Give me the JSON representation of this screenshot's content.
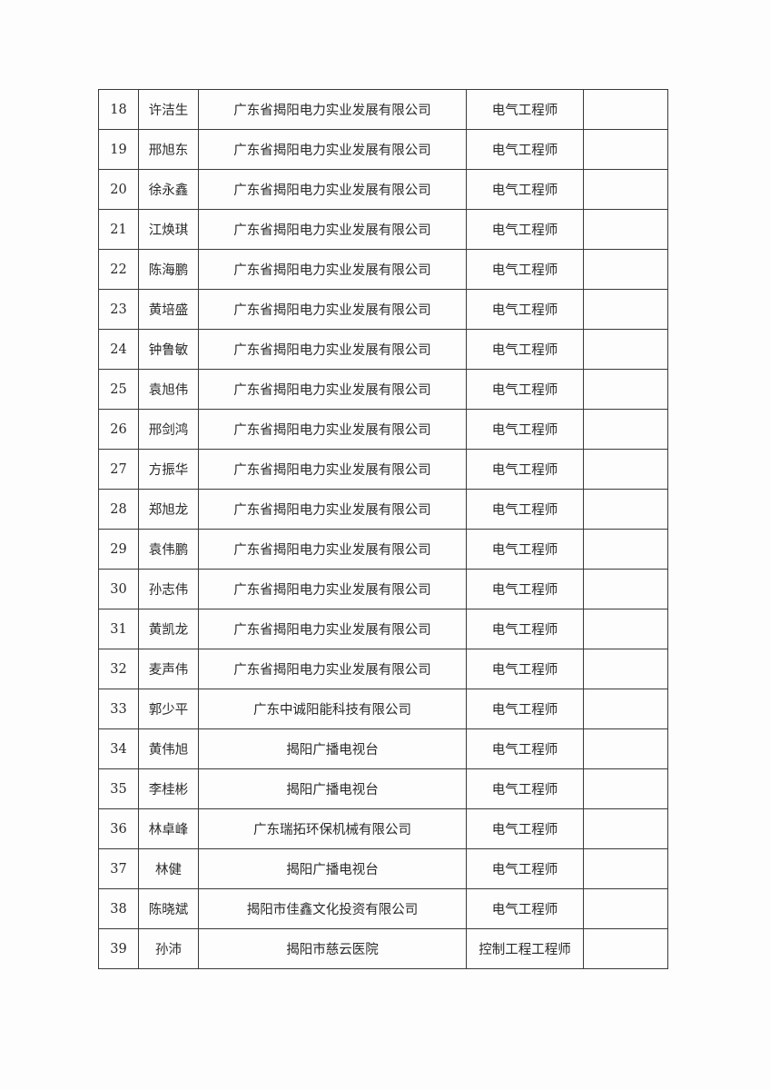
{
  "rows": [
    {
      "no": "18",
      "name": "许洁生",
      "org": "广东省揭阳电力实业发展有限公司",
      "title": "电气工程师",
      "note": ""
    },
    {
      "no": "19",
      "name": "邢旭东",
      "org": "广东省揭阳电力实业发展有限公司",
      "title": "电气工程师",
      "note": ""
    },
    {
      "no": "20",
      "name": "徐永鑫",
      "org": "广东省揭阳电力实业发展有限公司",
      "title": "电气工程师",
      "note": ""
    },
    {
      "no": "21",
      "name": "江焕琪",
      "org": "广东省揭阳电力实业发展有限公司",
      "title": "电气工程师",
      "note": ""
    },
    {
      "no": "22",
      "name": "陈海鹏",
      "org": "广东省揭阳电力实业发展有限公司",
      "title": "电气工程师",
      "note": ""
    },
    {
      "no": "23",
      "name": "黄培盛",
      "org": "广东省揭阳电力实业发展有限公司",
      "title": "电气工程师",
      "note": ""
    },
    {
      "no": "24",
      "name": "钟鲁敏",
      "org": "广东省揭阳电力实业发展有限公司",
      "title": "电气工程师",
      "note": ""
    },
    {
      "no": "25",
      "name": "袁旭伟",
      "org": "广东省揭阳电力实业发展有限公司",
      "title": "电气工程师",
      "note": ""
    },
    {
      "no": "26",
      "name": "邢剑鸿",
      "org": "广东省揭阳电力实业发展有限公司",
      "title": "电气工程师",
      "note": ""
    },
    {
      "no": "27",
      "name": "方振华",
      "org": "广东省揭阳电力实业发展有限公司",
      "title": "电气工程师",
      "note": ""
    },
    {
      "no": "28",
      "name": "郑旭龙",
      "org": "广东省揭阳电力实业发展有限公司",
      "title": "电气工程师",
      "note": ""
    },
    {
      "no": "29",
      "name": "袁伟鹏",
      "org": "广东省揭阳电力实业发展有限公司",
      "title": "电气工程师",
      "note": ""
    },
    {
      "no": "30",
      "name": "孙志伟",
      "org": "广东省揭阳电力实业发展有限公司",
      "title": "电气工程师",
      "note": ""
    },
    {
      "no": "31",
      "name": "黄凯龙",
      "org": "广东省揭阳电力实业发展有限公司",
      "title": "电气工程师",
      "note": ""
    },
    {
      "no": "32",
      "name": "麦声伟",
      "org": "广东省揭阳电力实业发展有限公司",
      "title": "电气工程师",
      "note": ""
    },
    {
      "no": "33",
      "name": "郭少平",
      "org": "广东中诚阳能科技有限公司",
      "title": "电气工程师",
      "note": ""
    },
    {
      "no": "34",
      "name": "黄伟旭",
      "org": "揭阳广播电视台",
      "title": "电气工程师",
      "note": ""
    },
    {
      "no": "35",
      "name": "李桂彬",
      "org": "揭阳广播电视台",
      "title": "电气工程师",
      "note": ""
    },
    {
      "no": "36",
      "name": "林卓峰",
      "org": "广东瑞拓环保机械有限公司",
      "title": "电气工程师",
      "note": ""
    },
    {
      "no": "37",
      "name": "林健",
      "org": "揭阳广播电视台",
      "title": "电气工程师",
      "note": ""
    },
    {
      "no": "38",
      "name": "陈晓斌",
      "org": "揭阳市佳鑫文化投资有限公司",
      "title": "电气工程师",
      "note": ""
    },
    {
      "no": "39",
      "name": "孙沛",
      "org": "揭阳市慈云医院",
      "title": "控制工程工程师",
      "note": ""
    }
  ]
}
